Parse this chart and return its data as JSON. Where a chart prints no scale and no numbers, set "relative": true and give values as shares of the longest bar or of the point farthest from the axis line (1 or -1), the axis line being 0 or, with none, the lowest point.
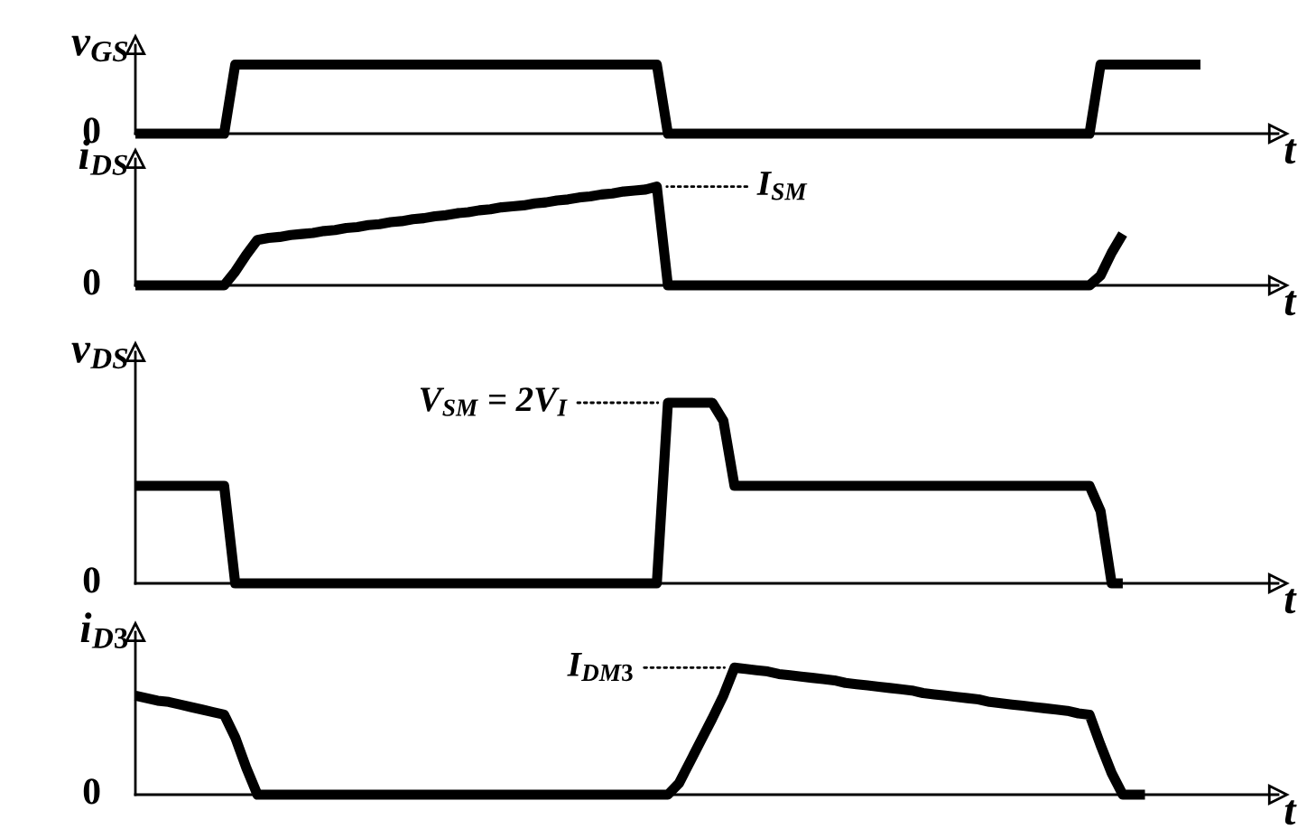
{
  "chart_data": [
    {
      "type": "line",
      "relative": true,
      "ylabel": "v$_{GS}$",
      "xlabel": "t",
      "annotations": [
        "0"
      ],
      "categories": [
        null,
        null,
        null,
        null,
        null,
        null,
        null,
        null,
        null,
        null,
        null,
        null,
        null,
        null,
        null,
        null,
        null,
        null,
        null,
        null,
        null,
        null,
        null,
        null,
        null,
        null,
        null,
        null,
        null,
        null,
        null,
        null,
        null,
        null,
        null,
        null,
        null,
        null,
        null,
        null,
        null,
        null,
        null,
        null,
        null,
        null,
        null,
        null,
        null,
        null,
        null,
        null,
        null,
        null,
        null,
        null,
        null,
        null,
        null,
        null,
        null,
        null,
        null,
        null,
        null,
        null,
        null,
        null,
        null,
        null,
        null,
        null,
        null,
        null,
        null,
        null,
        null,
        null,
        null,
        null,
        null,
        null,
        null,
        null,
        null,
        null,
        null,
        null,
        null,
        null,
        null,
        null,
        null,
        null,
        null,
        null,
        null,
        null,
        null,
        null
      ],
      "series": [
        {
          "color": "#000000",
          "values": [
            0,
            0,
            0,
            0,
            0,
            0,
            0,
            0,
            0,
            1,
            1,
            1,
            1,
            1,
            1,
            1,
            1,
            1,
            1,
            1,
            1,
            1,
            1,
            1,
            1,
            1,
            1,
            1,
            1,
            1,
            1,
            1,
            1,
            1,
            1,
            1,
            1,
            1,
            1,
            1,
            1,
            1,
            1,
            1,
            1,
            1,
            1,
            1,
            0,
            0,
            0,
            0,
            0,
            0,
            0,
            0,
            0,
            0,
            0,
            0,
            0,
            0,
            0,
            0,
            0,
            0,
            0,
            0,
            0,
            0,
            0,
            0,
            0,
            0,
            0,
            0,
            0,
            0,
            0,
            0,
            0,
            0,
            0,
            0,
            0,
            0,
            0,
            1,
            1,
            1,
            1,
            1,
            1,
            1,
            1,
            1,
            1,
            null,
            null,
            null
          ]
        }
      ]
    },
    {
      "type": "line",
      "relative": true,
      "ylabel": "i$_{DS}$",
      "xlabel": "t",
      "categories": [
        null,
        null,
        null,
        null,
        null,
        null,
        null,
        null,
        null,
        null,
        null,
        null,
        null,
        null,
        null,
        null,
        null,
        null,
        null,
        null,
        null,
        null,
        null,
        null,
        null,
        null,
        null,
        null,
        null,
        null,
        null,
        null,
        null,
        null,
        null,
        null,
        null,
        null,
        null,
        null,
        null,
        null,
        null,
        null,
        null,
        null,
        null,
        null,
        null,
        null,
        null,
        null,
        null,
        null,
        null,
        null,
        null,
        null,
        null,
        null,
        null,
        null,
        null,
        null,
        null,
        null,
        null,
        null,
        null,
        null,
        null,
        null,
        null,
        null,
        null,
        null,
        null,
        null,
        null,
        null,
        null,
        null,
        null,
        null,
        null,
        null,
        null,
        null,
        null,
        null,
        null,
        null,
        null,
        null,
        null,
        null,
        null,
        null,
        null,
        null
      ],
      "series": [
        {
          "color": "#000000",
          "values": [
            0,
            0,
            0,
            0,
            0,
            0,
            0,
            0,
            0,
            0.14,
            0.31,
            0.46,
            0.48,
            0.49,
            0.51,
            0.52,
            0.53,
            0.55,
            0.56,
            0.58,
            0.59,
            0.61,
            0.62,
            0.64,
            0.65,
            0.67,
            0.68,
            0.7,
            0.71,
            0.73,
            0.74,
            0.76,
            0.77,
            0.79,
            0.8,
            0.81,
            0.83,
            0.84,
            0.86,
            0.87,
            0.89,
            0.9,
            0.92,
            0.93,
            0.95,
            0.96,
            0.97,
            1,
            0,
            0,
            0,
            0,
            0,
            0,
            0,
            0,
            0,
            0,
            0,
            0,
            0,
            0,
            0,
            0,
            0,
            0,
            0,
            0,
            0,
            0,
            0,
            0,
            0,
            0,
            0,
            0,
            0,
            0,
            0,
            0,
            0,
            0,
            0,
            0,
            0,
            0,
            0,
            0.1,
            0.33,
            0.52,
            null,
            null,
            null,
            null,
            null,
            null,
            null,
            null,
            null,
            null
          ]
        }
      ],
      "annotations": [
        "0",
        "I$_{SM}$"
      ]
    },
    {
      "type": "line",
      "relative": true,
      "ylabel": "v$_{DS}$",
      "xlabel": "t",
      "categories": [
        null,
        null,
        null,
        null,
        null,
        null,
        null,
        null,
        null,
        null,
        null,
        null,
        null,
        null,
        null,
        null,
        null,
        null,
        null,
        null,
        null,
        null,
        null,
        null,
        null,
        null,
        null,
        null,
        null,
        null,
        null,
        null,
        null,
        null,
        null,
        null,
        null,
        null,
        null,
        null,
        null,
        null,
        null,
        null,
        null,
        null,
        null,
        null,
        null,
        null,
        null,
        null,
        null,
        null,
        null,
        null,
        null,
        null,
        null,
        null,
        null,
        null,
        null,
        null,
        null,
        null,
        null,
        null,
        null,
        null,
        null,
        null,
        null,
        null,
        null,
        null,
        null,
        null,
        null,
        null,
        null,
        null,
        null,
        null,
        null,
        null,
        null,
        null,
        null,
        null,
        null,
        null,
        null,
        null,
        null,
        null,
        null,
        null,
        null,
        null
      ],
      "series": [
        {
          "color": "#000000",
          "values": [
            0.54,
            0.54,
            0.54,
            0.54,
            0.54,
            0.54,
            0.54,
            0.54,
            0.54,
            0,
            0,
            0,
            0,
            0,
            0,
            0,
            0,
            0,
            0,
            0,
            0,
            0,
            0,
            0,
            0,
            0,
            0,
            0,
            0,
            0,
            0,
            0,
            0,
            0,
            0,
            0,
            0,
            0,
            0,
            0,
            0,
            0,
            0,
            0,
            0,
            0,
            0,
            0,
            1,
            1,
            1,
            1,
            1,
            0.9,
            0.54,
            0.54,
            0.54,
            0.54,
            0.54,
            0.54,
            0.54,
            0.54,
            0.54,
            0.54,
            0.54,
            0.54,
            0.54,
            0.54,
            0.54,
            0.54,
            0.54,
            0.54,
            0.54,
            0.54,
            0.54,
            0.54,
            0.54,
            0.54,
            0.54,
            0.54,
            0.54,
            0.54,
            0.54,
            0.54,
            0.54,
            0.54,
            0.54,
            0.4,
            0,
            0,
            null,
            null,
            null,
            null,
            null,
            null,
            null,
            null,
            null,
            null
          ]
        }
      ],
      "annotations": [
        "0",
        "V$_{SM}$ = 2V$_{I}$"
      ]
    },
    {
      "type": "line",
      "relative": true,
      "ylabel": "i$_{D3}$",
      "xlabel": "t",
      "categories": [
        null,
        null,
        null,
        null,
        null,
        null,
        null,
        null,
        null,
        null,
        null,
        null,
        null,
        null,
        null,
        null,
        null,
        null,
        null,
        null,
        null,
        null,
        null,
        null,
        null,
        null,
        null,
        null,
        null,
        null,
        null,
        null,
        null,
        null,
        null,
        null,
        null,
        null,
        null,
        null,
        null,
        null,
        null,
        null,
        null,
        null,
        null,
        null,
        null,
        null,
        null,
        null,
        null,
        null,
        null,
        null,
        null,
        null,
        null,
        null,
        null,
        null,
        null,
        null,
        null,
        null,
        null,
        null,
        null,
        null,
        null,
        null,
        null,
        null,
        null,
        null,
        null,
        null,
        null,
        null,
        null,
        null,
        null,
        null,
        null,
        null,
        null,
        null,
        null,
        null,
        null,
        null,
        null,
        null,
        null,
        null,
        null,
        null,
        null,
        null
      ],
      "series": [
        {
          "color": "#000000",
          "values": [
            0.78,
            0.76,
            0.74,
            0.73,
            0.71,
            0.69,
            0.67,
            0.65,
            0.63,
            0.45,
            0.21,
            0,
            0,
            0,
            0,
            0,
            0,
            0,
            0,
            0,
            0,
            0,
            0,
            0,
            0,
            0,
            0,
            0,
            0,
            0,
            0,
            0,
            0,
            0,
            0,
            0,
            0,
            0,
            0,
            0,
            0,
            0,
            0,
            0,
            0,
            0,
            0,
            0,
            0,
            0.09,
            0.26,
            0.43,
            0.6,
            0.78,
            1,
            0.99,
            0.98,
            0.97,
            0.95,
            0.94,
            0.93,
            0.92,
            0.91,
            0.9,
            0.88,
            0.87,
            0.86,
            0.85,
            0.84,
            0.83,
            0.82,
            0.8,
            0.79,
            0.78,
            0.77,
            0.76,
            0.75,
            0.73,
            0.72,
            0.71,
            0.7,
            0.69,
            0.68,
            0.67,
            0.66,
            0.64,
            0.63,
            0.39,
            0.17,
            0,
            0,
            0,
            null,
            null,
            null,
            null,
            null,
            null,
            null,
            null
          ]
        }
      ],
      "annotations": [
        "0",
        "I$_{DM3}$"
      ]
    }
  ]
}
